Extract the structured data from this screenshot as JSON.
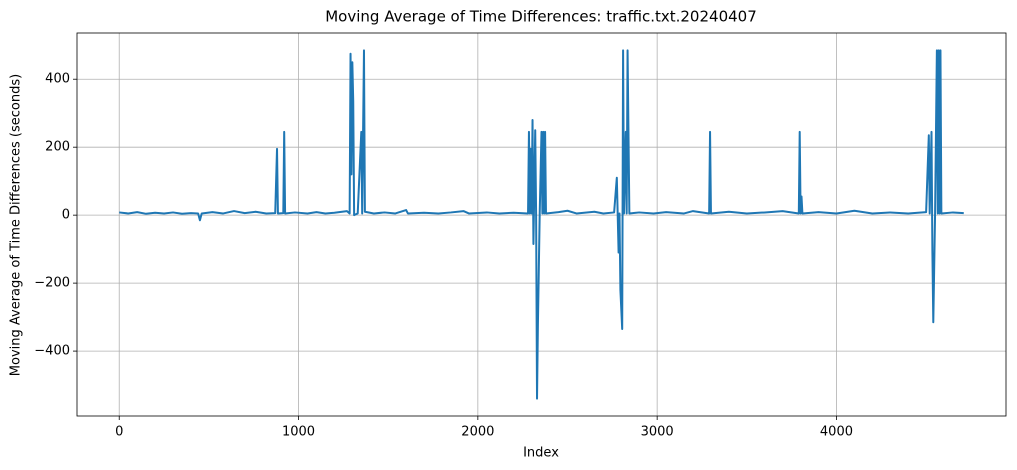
{
  "chart_data": {
    "type": "line",
    "title": "Moving Average of Time Differences: traffic.txt.20240407",
    "xlabel": "Index",
    "ylabel": "Moving Average of Time Differences (seconds)",
    "x": [
      0,
      50,
      100,
      150,
      200,
      250,
      300,
      350,
      400,
      440,
      450,
      460,
      520,
      580,
      640,
      700,
      760,
      820,
      870,
      880,
      885,
      915,
      920,
      925,
      980,
      1050,
      1100,
      1150,
      1200,
      1270,
      1285,
      1290,
      1295,
      1300,
      1305,
      1310,
      1330,
      1350,
      1355,
      1365,
      1370,
      1420,
      1480,
      1540,
      1600,
      1610,
      1700,
      1780,
      1850,
      1920,
      1950,
      2050,
      2120,
      2200,
      2280,
      2285,
      2290,
      2295,
      2300,
      2305,
      2310,
      2320,
      2325,
      2330,
      2335,
      2345,
      2355,
      2360,
      2365,
      2370,
      2375,
      2380,
      2450,
      2500,
      2550,
      2650,
      2700,
      2760,
      2775,
      2785,
      2790,
      2795,
      2805,
      2810,
      2815,
      2825,
      2830,
      2835,
      2840,
      2845,
      2900,
      2980,
      3050,
      3150,
      3200,
      3290,
      3295,
      3300,
      3400,
      3500,
      3600,
      3700,
      3790,
      3795,
      3800,
      3805,
      3810,
      3900,
      4000,
      4100,
      4200,
      4300,
      4400,
      4500,
      4515,
      4520,
      4530,
      4535,
      4540,
      4550,
      4560,
      4565,
      4570,
      4575,
      4580,
      4585,
      4650,
      4710
    ],
    "series": [
      {
        "name": "moving average",
        "color": "#1f77b4",
        "values": [
          8,
          5,
          9,
          4,
          7,
          5,
          8,
          4,
          6,
          5,
          -15,
          5,
          9,
          5,
          12,
          6,
          10,
          5,
          6,
          195,
          5,
          6,
          245,
          5,
          8,
          5,
          9,
          5,
          7,
          12,
          5,
          475,
          120,
          450,
          335,
          0,
          5,
          245,
          5,
          485,
          10,
          5,
          8,
          5,
          15,
          5,
          7,
          5,
          8,
          12,
          5,
          8,
          5,
          7,
          5,
          245,
          5,
          195,
          5,
          280,
          -85,
          250,
          0,
          -540,
          -320,
          5,
          245,
          5,
          245,
          5,
          245,
          5,
          9,
          13,
          5,
          10,
          5,
          8,
          110,
          -110,
          5,
          -220,
          -335,
          485,
          5,
          245,
          5,
          485,
          245,
          5,
          8,
          5,
          9,
          5,
          12,
          5,
          245,
          5,
          10,
          5,
          8,
          12,
          5,
          245,
          5,
          55,
          5,
          9,
          5,
          13,
          5,
          8,
          5,
          9,
          235,
          5,
          245,
          -105,
          -315,
          5,
          485,
          5,
          485,
          5,
          485,
          5,
          8,
          6
        ]
      }
    ],
    "xlim": [
      -235.5,
      4945.5
    ],
    "ylim": [
      -591,
      536
    ],
    "xticks": [
      0,
      1000,
      2000,
      3000,
      4000
    ],
    "yticks": [
      {
        "value": -400,
        "label": "−400"
      },
      {
        "value": -200,
        "label": "−200"
      },
      0,
      200,
      400
    ],
    "grid": true
  }
}
